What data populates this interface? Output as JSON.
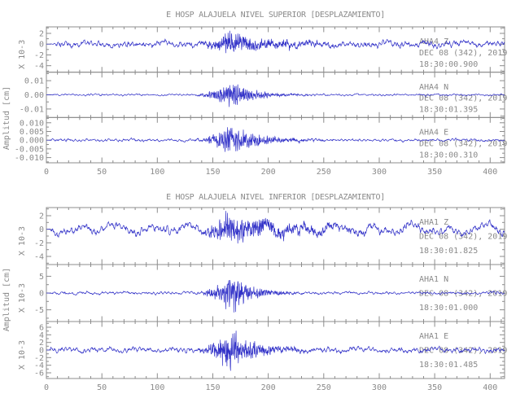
{
  "theme": {
    "background": "#ffffff",
    "trace_color": "#3232c8",
    "axis_color": "#8c8c8c",
    "text_color": "#8a8a8a"
  },
  "chart_data": [
    {
      "type": "line",
      "title": "E HOSP ALAJUELA NIVEL SUPERIOR [DESPLAZAMIENTO]",
      "ylabel": "Amplitud [cm]",
      "xlim": [
        0,
        413
      ],
      "xticks": [
        0,
        50,
        100,
        150,
        200,
        250,
        300,
        350,
        400
      ],
      "x_minor_step": 10,
      "grid": false,
      "traces": [
        {
          "station": "AHA4",
          "component": "Z",
          "date": "DEC 08 (342), 2019",
          "time": "18:30:00.900",
          "scale_label": "X 10-3",
          "ytick_labels": [
            "2",
            "0",
            "-2",
            "-4"
          ],
          "ytick_values": [
            2,
            0,
            -2,
            -4
          ],
          "ylim": [
            -5.2,
            3.2
          ],
          "y_minor_step": 1,
          "waveform": {
            "seed": 3,
            "noise": 0.55,
            "wander": 0.2,
            "burst": 1.6,
            "burst_start": 127,
            "burst_peak": 164,
            "decay": 45,
            "quiet": 10
          }
        },
        {
          "station": "AHA4",
          "component": "N",
          "date": "DEC 08 (342), 2019",
          "time": "18:30:01.395",
          "scale_label": null,
          "ytick_labels": [
            "0.01",
            "0.00",
            "-0.01"
          ],
          "ytick_values": [
            0.01,
            0,
            -0.01
          ],
          "ylim": [
            -0.016,
            0.016
          ],
          "y_minor_step": 0.005,
          "waveform": {
            "seed": 7,
            "noise": 0.00065,
            "wander": 0.0001,
            "burst": 0.0085,
            "burst_start": 128,
            "burst_peak": 166,
            "decay": 20,
            "quiet": 4
          }
        },
        {
          "station": "AHA4",
          "component": "E",
          "date": "DEC 08 (342), 2019",
          "time": "18:30:00.310",
          "scale_label": null,
          "ytick_labels": [
            "0.010",
            "0.005",
            "0.000",
            "-0.005",
            "-0.010"
          ],
          "ytick_values": [
            0.01,
            0.005,
            0,
            -0.005,
            -0.01
          ],
          "ylim": [
            -0.013,
            0.013
          ],
          "y_minor_step": 0.0025,
          "waveform": {
            "seed": 13,
            "noise": 0.00075,
            "wander": 0.00012,
            "burst": 0.0075,
            "burst_start": 128,
            "burst_peak": 165,
            "decay": 24,
            "quiet": 4
          }
        }
      ]
    },
    {
      "type": "line",
      "title": "E HOSP ALAJUELA NIVEL INFERIOR [DESPLAZAMIENTO]",
      "ylabel": "Amplitud [cm]",
      "xlim": [
        0,
        413
      ],
      "xticks": [
        0,
        50,
        100,
        150,
        200,
        250,
        300,
        350,
        400
      ],
      "x_minor_step": 10,
      "grid": false,
      "traces": [
        {
          "station": "AHA1",
          "component": "Z",
          "date": "DEC 08 (342), 2019",
          "time": "18:30:01.825",
          "scale_label": "X 10-3",
          "ytick_labels": [
            "2",
            "0",
            "-2",
            "-4"
          ],
          "ytick_values": [
            2,
            0,
            -2,
            -4
          ],
          "ylim": [
            -5.2,
            3.2
          ],
          "y_minor_step": 1,
          "waveform": {
            "seed": 21,
            "noise": 0.6,
            "wander": 0.45,
            "burst": 1.8,
            "burst_start": 126,
            "burst_peak": 163,
            "decay": 50,
            "quiet": 6
          }
        },
        {
          "station": "AHA1",
          "component": "N",
          "date": "DEC 08 (342), 2019",
          "time": "18:30:01.000",
          "scale_label": "X 10-3",
          "ytick_labels": [
            "5",
            "0",
            "-5"
          ],
          "ytick_values": [
            5,
            0,
            -5
          ],
          "ylim": [
            -8.5,
            8.5
          ],
          "y_minor_step": 2.5,
          "waveform": {
            "seed": 29,
            "noise": 0.42,
            "wander": 0.1,
            "burst": 5.2,
            "burst_start": 132,
            "burst_peak": 166,
            "decay": 17,
            "quiet": 4
          }
        },
        {
          "station": "AHA1",
          "component": "E",
          "date": "DEC 08 (342), 2019",
          "time": "18:30:01.485",
          "scale_label": "X 10-3",
          "ytick_labels": [
            "6",
            "4",
            "2",
            "0",
            "-2",
            "-4",
            "-6"
          ],
          "ytick_values": [
            6,
            4,
            2,
            0,
            -2,
            -4,
            -6
          ],
          "ylim": [
            -7.5,
            7.5
          ],
          "y_minor_step": 1,
          "waveform": {
            "seed": 37,
            "noise": 0.65,
            "wander": 0.2,
            "burst": 4.6,
            "burst_start": 130,
            "burst_peak": 166,
            "decay": 22,
            "quiet": 4
          }
        }
      ]
    }
  ]
}
